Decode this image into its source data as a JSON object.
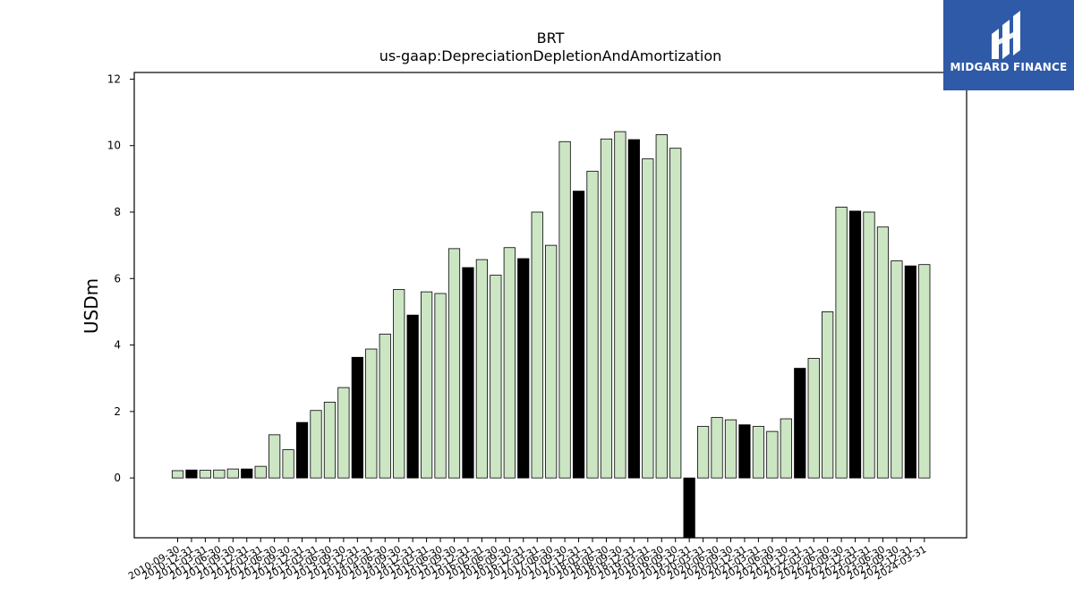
{
  "logo": {
    "text": "MIDGARD FINANCE"
  },
  "chart_data": {
    "type": "bar",
    "title": "BRT",
    "subtitle": "us-gaap:DepreciationDepletionAndAmortization",
    "ylabel": "USDm",
    "xlabel": "",
    "ylim": [
      -1.8,
      12.2
    ],
    "yticks": [
      0,
      2,
      4,
      6,
      8,
      10,
      12
    ],
    "grid": false,
    "colors": {
      "quarter": "#cce6c4",
      "annual": "#000000",
      "edge": "#000000"
    },
    "categories": [
      "2010-09-30",
      "2010-12-31",
      "2011-03-31",
      "2011-06-30",
      "2011-09-30",
      "2011-12-31",
      "2012-03-31",
      "2012-06-30",
      "2012-09-30",
      "2012-12-31",
      "2013-03-31",
      "2013-06-30",
      "2013-09-30",
      "2013-12-31",
      "2014-03-31",
      "2014-06-30",
      "2014-09-30",
      "2014-12-31",
      "2015-03-31",
      "2015-06-30",
      "2015-09-30",
      "2015-12-31",
      "2016-03-31",
      "2016-06-30",
      "2016-09-30",
      "2016-12-31",
      "2017-03-31",
      "2017-06-30",
      "2017-09-30",
      "2017-12-31",
      "2018-03-31",
      "2018-06-30",
      "2018-09-30",
      "2018-12-31",
      "2019-03-31",
      "2019-06-30",
      "2019-09-30",
      "2019-12-31",
      "2020-03-31",
      "2020-06-30",
      "2020-09-30",
      "2020-12-31",
      "2021-03-31",
      "2021-06-30",
      "2021-09-30",
      "2021-12-31",
      "2022-03-31",
      "2022-06-30",
      "2022-09-30",
      "2022-12-31",
      "2023-03-31",
      "2023-06-30",
      "2023-09-30",
      "2023-12-31",
      "2024-03-31"
    ],
    "xtick_labels": [
      "2010-09-30",
      "2010-12-31",
      "2011-03-31",
      "2011-06-30",
      "2011-09-30",
      "2011-12-31",
      "2012-03-31",
      "2012-06-30",
      "2012-09-30",
      "2012-12-31",
      "2013-03-31",
      "2013-06-30",
      "2013-09-30",
      "2013-12-31",
      "2014-03-31",
      "2014-06-30",
      "2014-09-30",
      "2014-12-31",
      "2015-03-31",
      "2015-06-30",
      "2015-09-30",
      "2015-12-31",
      "2016-03-31",
      "2016-06-30",
      "2016-09-30",
      "2016-12-31",
      "2017-03-31",
      "2017-06-30",
      "2017-09-30",
      "2017-12-31",
      "2018-03-31",
      "2018-06-30",
      "2018-09-30",
      "2018-12-31",
      "2019-03-31",
      "2019-06-30",
      "2019-09-30",
      "2019-12-31",
      "2020-03-31",
      "2020-06-30",
      "2020-09-30",
      "2020-12-31",
      "2021-03-31",
      "2021-06-30",
      "2021-09-30",
      "2021-12-31",
      "2022-03-31",
      "2022-06-30",
      "2022-09-30",
      "2022-12-31",
      "2023-03-31",
      "2023-06-30",
      "2023-09-30",
      "2023-12-31",
      "2024-03-31"
    ],
    "values": [
      0.22,
      0.24,
      0.23,
      0.24,
      0.27,
      0.27,
      0.35,
      1.3,
      0.85,
      1.67,
      2.03,
      2.28,
      2.72,
      3.63,
      3.88,
      4.33,
      5.67,
      4.9,
      5.6,
      5.55,
      6.9,
      6.33,
      6.57,
      6.1,
      6.93,
      6.6,
      8.0,
      7.0,
      10.12,
      8.63,
      9.23,
      10.2,
      10.42,
      10.18,
      9.6,
      10.33,
      9.92,
      -1.8,
      1.55,
      1.82,
      1.75,
      1.6,
      1.55,
      1.4,
      1.78,
      3.3,
      3.6,
      5.0,
      8.15,
      8.03,
      8.0,
      7.55,
      6.53,
      6.38,
      6.42
    ],
    "annual": [
      false,
      true,
      false,
      false,
      false,
      true,
      false,
      false,
      false,
      true,
      false,
      false,
      false,
      true,
      false,
      false,
      false,
      true,
      false,
      false,
      false,
      true,
      false,
      false,
      false,
      true,
      false,
      false,
      false,
      true,
      false,
      false,
      false,
      true,
      false,
      false,
      false,
      true,
      false,
      false,
      false,
      true,
      false,
      false,
      false,
      true,
      false,
      false,
      false,
      true,
      false,
      false,
      false,
      true,
      false
    ]
  }
}
